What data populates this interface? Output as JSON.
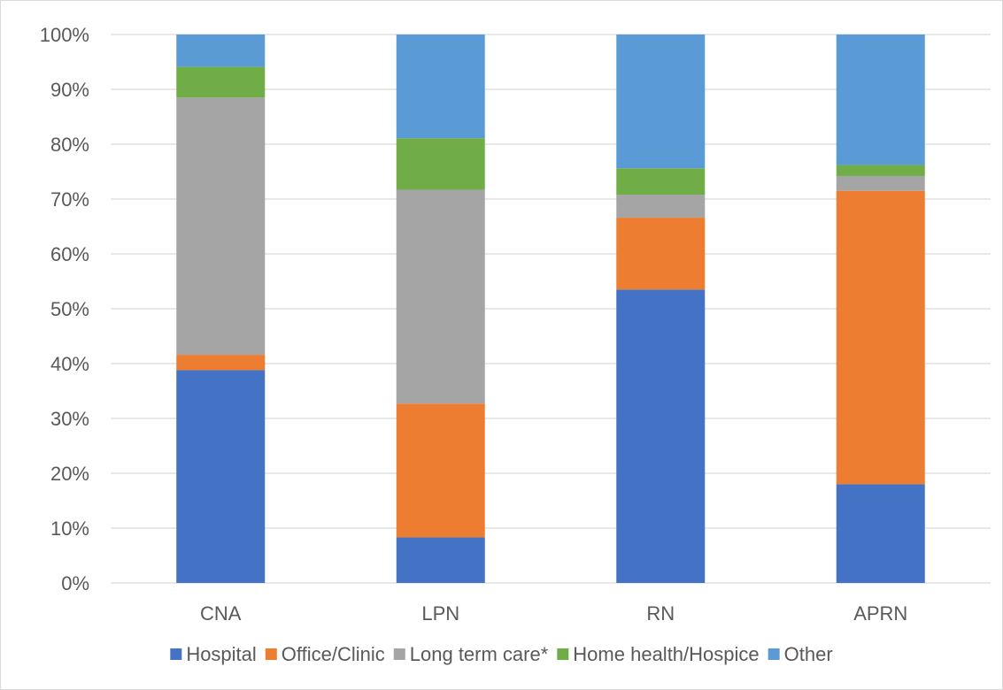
{
  "chart_data": {
    "type": "bar",
    "stacked": "percent",
    "categories": [
      "CNA",
      "LPN",
      "RN",
      "APRN"
    ],
    "series": [
      {
        "name": "Hospital",
        "color": "#4472C4",
        "values": [
          38.8,
          8.3,
          53.5,
          18.0
        ]
      },
      {
        "name": "Office/Clinic",
        "color": "#ED7D31",
        "values": [
          2.8,
          24.4,
          13.1,
          53.5
        ]
      },
      {
        "name": "Long term care*",
        "color": "#A5A5A5",
        "values": [
          46.9,
          39.0,
          4.2,
          2.7
        ]
      },
      {
        "name": "Home health/Hospice",
        "color": "#70AD47",
        "values": [
          5.6,
          9.4,
          4.8,
          2.0
        ]
      },
      {
        "name": "Other",
        "color": "#5B9BD5",
        "values": [
          5.9,
          18.9,
          24.4,
          23.8
        ]
      }
    ],
    "ylim": [
      0,
      100
    ],
    "yticks": [
      "0%",
      "10%",
      "20%",
      "30%",
      "40%",
      "50%",
      "60%",
      "70%",
      "80%",
      "90%",
      "100%"
    ],
    "grid": true,
    "legend_position": "bottom"
  }
}
